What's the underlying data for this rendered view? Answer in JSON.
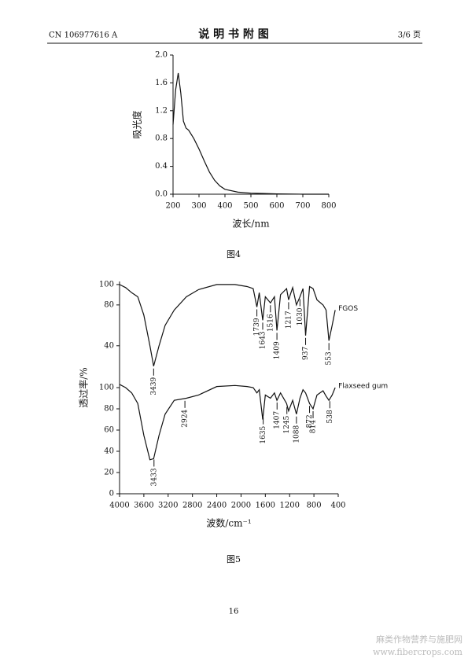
{
  "header": {
    "left": "CN 106977616 A",
    "title": "说 明 书 附 图",
    "right": "3/6 页"
  },
  "chart_data": [
    {
      "type": "line",
      "xlabel": "波长/nm",
      "ylabel": "吸光度",
      "x": [
        200,
        210,
        220,
        230,
        240,
        250,
        260,
        280,
        300,
        320,
        340,
        360,
        380,
        400,
        450,
        500,
        550,
        600,
        700,
        800
      ],
      "series": [
        {
          "color": "#111",
          "values": [
            1.0,
            1.5,
            1.74,
            1.45,
            1.05,
            0.95,
            0.92,
            0.8,
            0.65,
            0.48,
            0.32,
            0.2,
            0.12,
            0.07,
            0.03,
            0.015,
            0.01,
            0.005,
            0.0,
            0.0
          ]
        }
      ],
      "xlim": [
        200,
        800
      ],
      "xticks": [
        200,
        300,
        400,
        500,
        600,
        700,
        800
      ],
      "ylim": [
        0,
        2
      ],
      "yticks": [
        {
          "value": 0,
          "label": "0.0"
        },
        {
          "value": 0.4,
          "label": "0.4"
        },
        {
          "value": 0.8,
          "label": "0.8"
        },
        {
          "value": 1.2,
          "label": "1.2"
        },
        {
          "value": 1.6,
          "label": "1.6"
        },
        {
          "value": 2,
          "label": "2.0"
        }
      ]
    },
    {
      "type": "line",
      "xlabel": "波数/cm⁻¹",
      "ylabel": "透过率/%",
      "x": [
        4000,
        3900,
        3800,
        3700,
        3600,
        3500,
        3439,
        3350,
        3250,
        3100,
        2900,
        2700,
        2400,
        2100,
        1900,
        1800,
        1739,
        1700,
        1643,
        1600,
        1516,
        1450,
        1409,
        1350,
        1250,
        1217,
        1150,
        1088,
        1030,
        980,
        937,
        872,
        814,
        750,
        650,
        600,
        553,
        500,
        450
      ],
      "series": [
        {
          "name": "FGOS",
          "axis": "y2",
          "color": "#111",
          "values": [
            100,
            97,
            92,
            88,
            70,
            40,
            20,
            40,
            60,
            75,
            88,
            95,
            100,
            100,
            98,
            96,
            78,
            92,
            65,
            88,
            82,
            88,
            55,
            90,
            96,
            85,
            97,
            80,
            88,
            96,
            50,
            98,
            96,
            85,
            80,
            75,
            45,
            60,
            75
          ],
          "peaks": [
            3439,
            1739,
            1643,
            1516,
            1409,
            1217,
            1030,
            937,
            553
          ]
        },
        {
          "name": "Flaxseed gum",
          "color": "#111",
          "values": [
            103,
            100,
            95,
            85,
            55,
            32,
            33,
            55,
            75,
            88,
            90,
            93,
            101,
            102,
            101,
            100,
            95,
            98,
            70,
            93,
            90,
            95,
            88,
            95,
            85,
            78,
            88,
            75,
            90,
            98,
            95,
            85,
            80,
            93,
            97,
            92,
            88,
            93,
            100
          ],
          "peaks": [
            3433,
            2924,
            1635,
            1407,
            1245,
            1088,
            872,
            814,
            538
          ]
        }
      ],
      "xlim": [
        4000,
        400
      ],
      "xticks": [
        4000,
        3600,
        3200,
        2800,
        2400,
        2000,
        1600,
        1200,
        800,
        400
      ],
      "ylim": [
        0,
        200
      ],
      "yticks": [
        0,
        20,
        40,
        60,
        80,
        100
      ],
      "y2lim": [
        -105,
        103
      ],
      "y2ticks": [
        40,
        80,
        100
      ]
    }
  ],
  "captions": [
    "图4",
    "图5"
  ],
  "page_number": "16",
  "watermark": [
    "麻类作物营养与施肥网",
    "www.fibercrops.com"
  ]
}
